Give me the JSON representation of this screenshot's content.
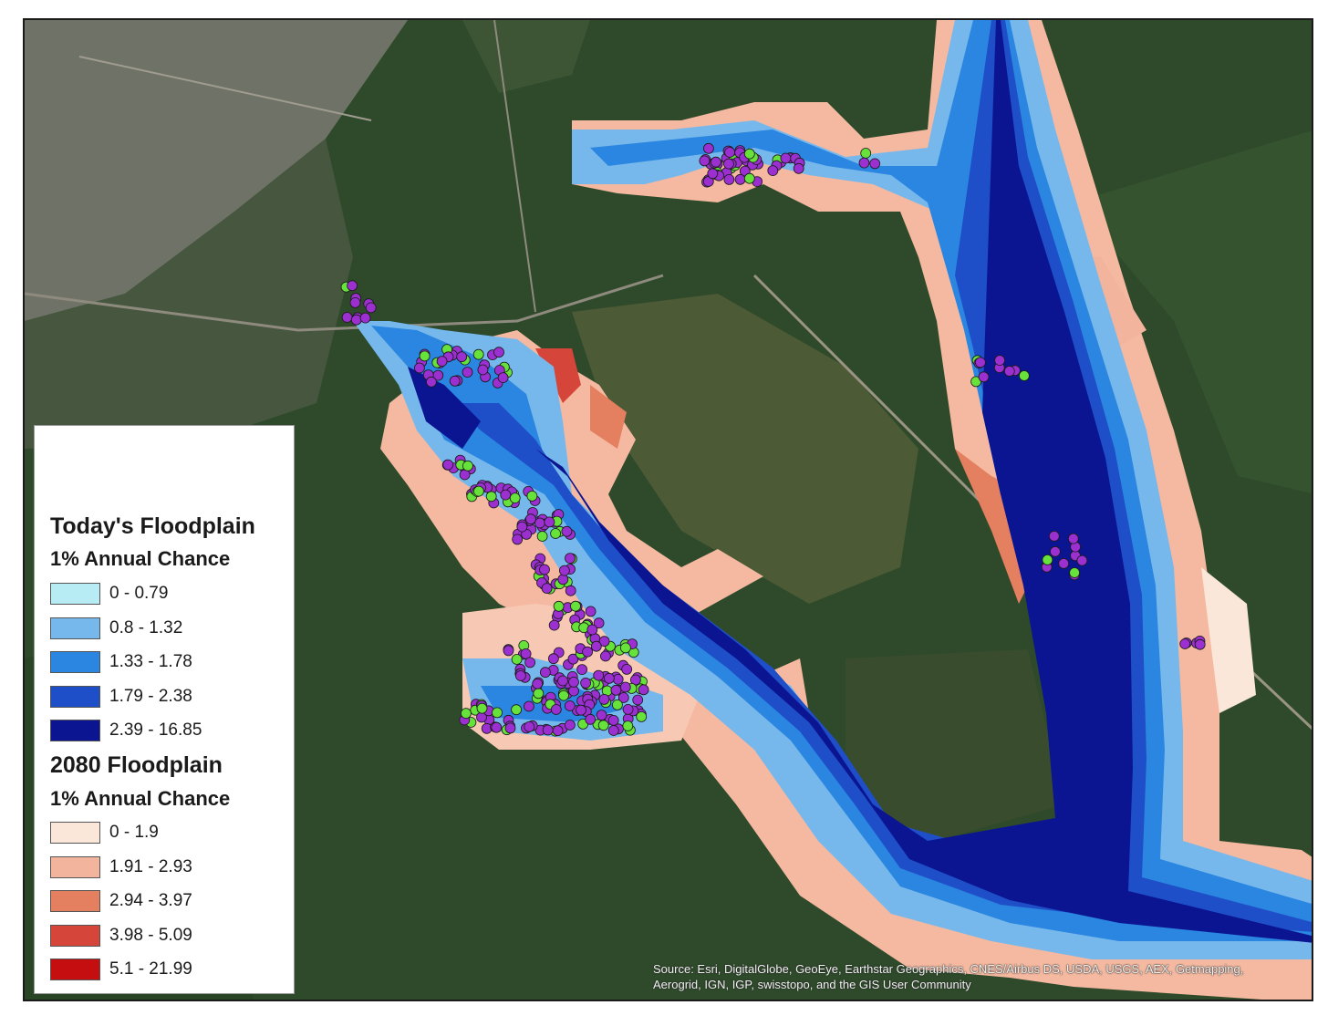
{
  "legend": {
    "today": {
      "title": "Today's Floodplain",
      "subtitle": "1% Annual Chance",
      "classes": [
        {
          "label": "0 - 0.79",
          "color": "#b8ecf4"
        },
        {
          "label": "0.8 - 1.32",
          "color": "#77b8ec"
        },
        {
          "label": "1.33 - 1.78",
          "color": "#2a86e0"
        },
        {
          "label": "1.79 - 2.38",
          "color": "#1f4fc8"
        },
        {
          "label": "2.39 - 16.85",
          "color": "#0b1591"
        }
      ]
    },
    "future": {
      "title": "2080 Floodplain",
      "subtitle": "1% Annual Chance",
      "classes": [
        {
          "label": "0 - 1.9",
          "color": "#fbe6da"
        },
        {
          "label": "1.91 - 2.93",
          "color": "#f2b49c"
        },
        {
          "label": "2.94 - 3.97",
          "color": "#e4805f"
        },
        {
          "label": "3.98 - 5.09",
          "color": "#d6453a"
        },
        {
          "label": "5.1 - 21.99",
          "color": "#c40e10"
        }
      ]
    }
  },
  "attribution": "Source: Esri, DigitalGlobe, GeoEye, Earthstar Geographics, CNES/Airbus DS, USDA, USGS, AEX, Getmapping, Aerogrid, IGN, IGP, swisstopo, and the GIS User Community",
  "point_colors": {
    "purple": "#9b2fd0",
    "green": "#66e23a"
  },
  "imagery_colors": {
    "forest": "#2f4a2b",
    "urban": "#7d7f73"
  }
}
